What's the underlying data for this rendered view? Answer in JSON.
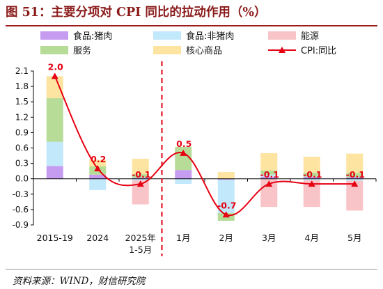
{
  "title": "图 51：主要分项对 CPI 同比的拉动作用（%）",
  "source": "资料来源：WIND，财信研究院",
  "colors": {
    "food_pork": "#c59cf0",
    "food_nonpork": "#c2e8fb",
    "energy": "#f9c4c8",
    "services": "#b6dc98",
    "core_goods": "#fde4a1",
    "cpi_line": "#e60012",
    "divider": "#e60012",
    "axis": "#000000",
    "label_red": "#e60012"
  },
  "chart_data": {
    "type": "bar",
    "subtype": "stacked bar + line",
    "categories": [
      "2015-19",
      "2024",
      "2025年\n1-5月",
      "1月",
      "2月",
      "3月",
      "4月",
      "5月"
    ],
    "ylim": [
      -0.9,
      2.1
    ],
    "yticks": [
      "-0.9",
      "-0.6",
      "-0.3",
      "0.0",
      "0.3",
      "0.6",
      "0.9",
      "1.2",
      "1.5",
      "1.8",
      "2.1"
    ],
    "divider_after_index": 2,
    "legend_position": "top",
    "series": [
      {
        "name": "食品:猪肉",
        "key": "food_pork",
        "values": [
          0.25,
          0.08,
          0.02,
          0.17,
          -0.02,
          0.04,
          0.04,
          0.03
        ]
      },
      {
        "name": "食品:非猪肉",
        "key": "food_nonpork",
        "values": [
          0.47,
          -0.22,
          -0.03,
          -0.1,
          -0.65,
          0.04,
          -0.03,
          -0.04
        ]
      },
      {
        "name": "能源",
        "key": "energy",
        "values": [
          0.0,
          0.0,
          -0.47,
          0.0,
          0.0,
          -0.55,
          -0.52,
          -0.58
        ]
      },
      {
        "name": "服务",
        "key": "services",
        "values": [
          0.85,
          0.16,
          0.07,
          0.45,
          -0.15,
          0.08,
          0.08,
          0.08
        ]
      },
      {
        "name": "核心商品",
        "key": "core_goods",
        "values": [
          0.43,
          0.13,
          0.3,
          0.0,
          0.13,
          0.34,
          0.31,
          0.38
        ]
      }
    ],
    "line": {
      "name": "CPI:同比",
      "values": [
        2.0,
        0.2,
        -0.1,
        0.5,
        -0.7,
        -0.1,
        -0.1,
        -0.1
      ],
      "labels": [
        "2.0",
        "0.2",
        "-0.1",
        "0.5",
        "-0.7",
        "-0.1",
        "-0.1",
        "-0.1"
      ]
    }
  }
}
